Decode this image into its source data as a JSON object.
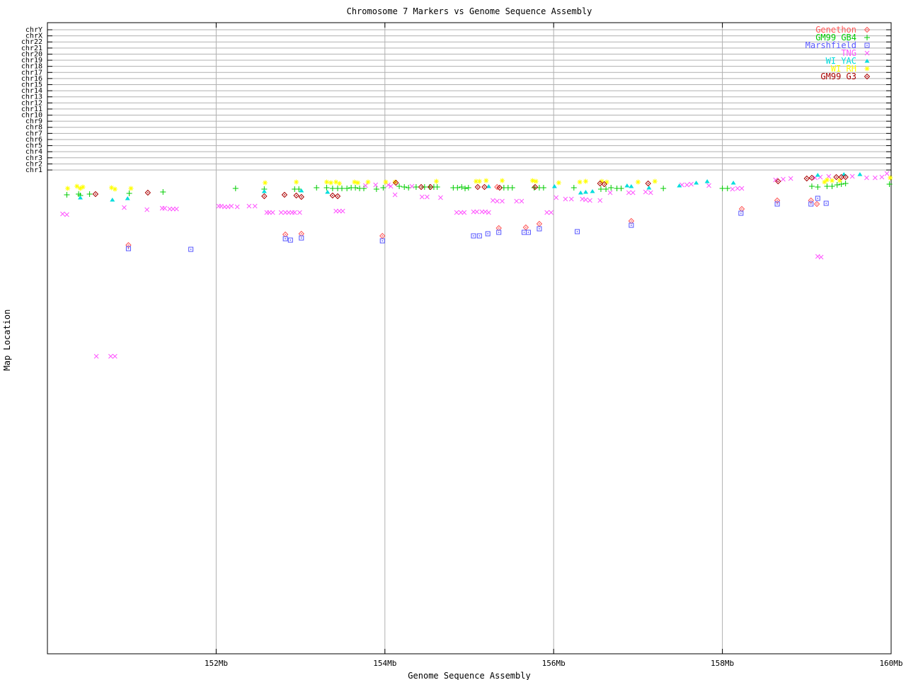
{
  "title": "Chromosome 7 Markers vs Genome Sequence Assembly",
  "x_axis": {
    "label": "Genome Sequence Assembly",
    "ticks": [
      "152Mb",
      "154Mb",
      "156Mb",
      "158Mb",
      "160Mb"
    ],
    "tick_values_mb": [
      152,
      154,
      156,
      158,
      160
    ]
  },
  "y_axis": {
    "label": "Map Location",
    "ticks": [
      "chrY",
      "chrX",
      "chr22",
      "chr21",
      "chr20",
      "chr19",
      "chr18",
      "chr17",
      "chr16",
      "chr15",
      "chr14",
      "chr13",
      "chr12",
      "chr11",
      "chr10",
      "chr9",
      "chr8",
      "chr7",
      "chr6",
      "chr5",
      "chr4",
      "chr3",
      "chr2",
      "chr1"
    ]
  },
  "colors": {
    "axis": "#000000",
    "grid": "#b0b0b0",
    "background": "#ffffff"
  },
  "chart_data": {
    "type": "scatter",
    "title": "Chromosome 7 Markers vs Genome Sequence Assembly",
    "xlabel": "Genome Sequence Assembly",
    "ylabel": "Map Location",
    "axes": {
      "x_min_mb": 150,
      "x_max_mb": 160,
      "x_tick_labels": [
        "152Mb",
        "154Mb",
        "156Mb",
        "158Mb",
        "160Mb"
      ],
      "y_note": "y axis has no numeric scale; chromosome boundary lines chrY..chr1 are evenly spaced at top; point y values below are screenshot pixel rows",
      "grid": true,
      "legend_position": "top-right-inside"
    },
    "series": [
      {
        "name": "Genethon",
        "marker": "open-diamond-dot",
        "color": "#ff5555",
        "points": [
          [
            150.96,
            346
          ],
          [
            152.82,
            331
          ],
          [
            153.01,
            330
          ],
          [
            153.97,
            333
          ],
          [
            155.33,
            264
          ],
          [
            155.35,
            322
          ],
          [
            155.67,
            321
          ],
          [
            155.83,
            316
          ],
          [
            156.92,
            312
          ],
          [
            158.23,
            295
          ],
          [
            158.65,
            283
          ],
          [
            159.05,
            283
          ],
          [
            159.12,
            288
          ]
        ]
      },
      {
        "name": "GM99 GB4",
        "marker": "plus",
        "color": "#00cc00",
        "points": [
          [
            150.23,
            275
          ],
          [
            150.37,
            274
          ],
          [
            150.39,
            276
          ],
          [
            150.5,
            274
          ],
          [
            150.97,
            273
          ],
          [
            151.37,
            271
          ],
          [
            152.23,
            266
          ],
          [
            152.57,
            267
          ],
          [
            152.93,
            267
          ],
          [
            152.98,
            267
          ],
          [
            153.19,
            265
          ],
          [
            153.31,
            265
          ],
          [
            153.38,
            266
          ],
          [
            153.44,
            266
          ],
          [
            153.49,
            266
          ],
          [
            153.55,
            266
          ],
          [
            153.6,
            265
          ],
          [
            153.65,
            265
          ],
          [
            153.7,
            266
          ],
          [
            153.75,
            266
          ],
          [
            153.9,
            267
          ],
          [
            153.98,
            265
          ],
          [
            154.17,
            263
          ],
          [
            154.23,
            264
          ],
          [
            154.28,
            265
          ],
          [
            154.37,
            264
          ],
          [
            154.47,
            264
          ],
          [
            154.53,
            264
          ],
          [
            154.58,
            264
          ],
          [
            154.62,
            264
          ],
          [
            154.81,
            265
          ],
          [
            154.86,
            265
          ],
          [
            154.91,
            264
          ],
          [
            154.95,
            266
          ],
          [
            154.99,
            265
          ],
          [
            155.41,
            265
          ],
          [
            155.46,
            265
          ],
          [
            155.51,
            265
          ],
          [
            155.77,
            265
          ],
          [
            155.83,
            265
          ],
          [
            155.88,
            265
          ],
          [
            156.24,
            265
          ],
          [
            156.56,
            267
          ],
          [
            156.62,
            267
          ],
          [
            156.68,
            265
          ],
          [
            156.75,
            266
          ],
          [
            156.8,
            266
          ],
          [
            157.3,
            266
          ],
          [
            158.0,
            266
          ],
          [
            158.06,
            266
          ],
          [
            159.06,
            263
          ],
          [
            159.13,
            264
          ],
          [
            159.24,
            263
          ],
          [
            159.3,
            263
          ],
          [
            159.36,
            261
          ],
          [
            159.41,
            260
          ],
          [
            159.46,
            259
          ],
          [
            159.98,
            260
          ]
        ]
      },
      {
        "name": "Marshfield",
        "marker": "open-square-dot",
        "color": "#5555ff",
        "points": [
          [
            150.96,
            351
          ],
          [
            151.7,
            352
          ],
          [
            152.82,
            337
          ],
          [
            152.88,
            339
          ],
          [
            153.01,
            336
          ],
          [
            153.97,
            340
          ],
          [
            155.05,
            333
          ],
          [
            155.12,
            333
          ],
          [
            155.22,
            330
          ],
          [
            155.35,
            328
          ],
          [
            155.65,
            328
          ],
          [
            155.7,
            328
          ],
          [
            155.83,
            323
          ],
          [
            156.28,
            327
          ],
          [
            156.92,
            318
          ],
          [
            158.22,
            301
          ],
          [
            158.65,
            288
          ],
          [
            159.05,
            288
          ],
          [
            159.13,
            280
          ],
          [
            159.23,
            287
          ]
        ]
      },
      {
        "name": "TNG",
        "marker": "x-cross",
        "color": "#ff55ff",
        "points": [
          [
            150.18,
            302
          ],
          [
            150.23,
            303
          ],
          [
            150.58,
            503
          ],
          [
            150.75,
            503
          ],
          [
            150.8,
            503
          ],
          [
            150.91,
            293
          ],
          [
            151.18,
            296
          ],
          [
            151.36,
            294
          ],
          [
            151.39,
            294
          ],
          [
            151.45,
            295
          ],
          [
            151.49,
            295
          ],
          [
            151.53,
            295
          ],
          [
            152.03,
            291
          ],
          [
            152.06,
            291
          ],
          [
            152.1,
            292
          ],
          [
            152.14,
            292
          ],
          [
            152.18,
            291
          ],
          [
            152.25,
            292
          ],
          [
            152.39,
            291
          ],
          [
            152.46,
            291
          ],
          [
            152.6,
            300
          ],
          [
            152.63,
            300
          ],
          [
            152.67,
            300
          ],
          [
            152.77,
            300
          ],
          [
            152.82,
            300
          ],
          [
            152.86,
            300
          ],
          [
            152.9,
            300
          ],
          [
            152.93,
            300
          ],
          [
            152.99,
            300
          ],
          [
            153.42,
            298
          ],
          [
            153.46,
            298
          ],
          [
            153.5,
            298
          ],
          [
            153.77,
            262
          ],
          [
            153.89,
            261
          ],
          [
            154.04,
            261
          ],
          [
            154.07,
            263
          ],
          [
            154.12,
            275
          ],
          [
            154.32,
            263
          ],
          [
            154.44,
            278
          ],
          [
            154.5,
            278
          ],
          [
            154.66,
            279
          ],
          [
            154.85,
            300
          ],
          [
            154.9,
            300
          ],
          [
            154.94,
            300
          ],
          [
            155.05,
            299
          ],
          [
            155.09,
            299
          ],
          [
            155.15,
            299
          ],
          [
            155.19,
            299
          ],
          [
            155.23,
            300
          ],
          [
            155.28,
            283
          ],
          [
            155.33,
            284
          ],
          [
            155.39,
            284
          ],
          [
            155.56,
            284
          ],
          [
            155.62,
            284
          ],
          [
            155.92,
            300
          ],
          [
            155.97,
            300
          ],
          [
            156.03,
            279
          ],
          [
            156.14,
            281
          ],
          [
            156.21,
            281
          ],
          [
            156.34,
            281
          ],
          [
            156.38,
            282
          ],
          [
            156.43,
            283
          ],
          [
            156.55,
            283
          ],
          [
            156.67,
            272
          ],
          [
            156.89,
            272
          ],
          [
            156.94,
            272
          ],
          [
            157.09,
            271
          ],
          [
            157.15,
            272
          ],
          [
            157.52,
            261
          ],
          [
            157.58,
            261
          ],
          [
            157.63,
            260
          ],
          [
            157.84,
            262
          ],
          [
            158.12,
            267
          ],
          [
            158.18,
            266
          ],
          [
            158.23,
            266
          ],
          [
            158.63,
            254
          ],
          [
            158.72,
            253
          ],
          [
            158.81,
            252
          ],
          [
            159.1,
            251
          ],
          [
            159.16,
            250
          ],
          [
            159.26,
            249
          ],
          [
            159.54,
            249
          ],
          [
            159.71,
            251
          ],
          [
            159.81,
            251
          ],
          [
            159.89,
            250
          ],
          [
            159.95,
            245
          ],
          [
            159.13,
            362
          ],
          [
            159.17,
            363
          ]
        ]
      },
      {
        "name": "WI YAC",
        "marker": "triangle-filled",
        "color": "#00dddd",
        "points": [
          [
            150.39,
            279
          ],
          [
            150.77,
            282
          ],
          [
            150.95,
            280
          ],
          [
            152.57,
            270
          ],
          [
            153.01,
            269
          ],
          [
            153.32,
            271
          ],
          [
            155.23,
            263
          ],
          [
            156.01,
            263
          ],
          [
            156.32,
            272
          ],
          [
            156.38,
            271
          ],
          [
            156.46,
            270
          ],
          [
            156.87,
            262
          ],
          [
            156.92,
            263
          ],
          [
            157.13,
            265
          ],
          [
            157.49,
            262
          ],
          [
            157.69,
            258
          ],
          [
            157.82,
            256
          ],
          [
            158.13,
            258
          ],
          [
            159.13,
            247
          ],
          [
            159.44,
            246
          ],
          [
            159.63,
            246
          ]
        ]
      },
      {
        "name": "WI RH",
        "marker": "asterisk",
        "color": "#ffff00",
        "points": [
          [
            150.24,
            266
          ],
          [
            150.35,
            263
          ],
          [
            150.39,
            266
          ],
          [
            150.42,
            264
          ],
          [
            150.76,
            265
          ],
          [
            150.8,
            267
          ],
          [
            150.99,
            266
          ],
          [
            152.58,
            258
          ],
          [
            152.95,
            257
          ],
          [
            153.31,
            257
          ],
          [
            153.36,
            258
          ],
          [
            153.42,
            257
          ],
          [
            153.46,
            259
          ],
          [
            153.64,
            257
          ],
          [
            153.68,
            258
          ],
          [
            153.8,
            257
          ],
          [
            154.01,
            257
          ],
          [
            154.12,
            257
          ],
          [
            154.61,
            256
          ],
          [
            155.08,
            256
          ],
          [
            155.12,
            256
          ],
          [
            155.2,
            255
          ],
          [
            155.39,
            255
          ],
          [
            155.75,
            255
          ],
          [
            155.79,
            256
          ],
          [
            156.06,
            258
          ],
          [
            156.31,
            257
          ],
          [
            156.38,
            256
          ],
          [
            156.57,
            256
          ],
          [
            156.63,
            257
          ],
          [
            157.0,
            257
          ],
          [
            157.2,
            256
          ],
          [
            159.21,
            257
          ],
          [
            159.24,
            254
          ],
          [
            159.3,
            255
          ],
          [
            159.39,
            255
          ],
          [
            159.99,
            251
          ]
        ]
      },
      {
        "name": "GM99 G3",
        "marker": "open-diamond-dot",
        "color": "#aa0000",
        "points": [
          [
            150.57,
            274
          ],
          [
            151.19,
            272
          ],
          [
            152.57,
            277
          ],
          [
            152.81,
            275
          ],
          [
            152.95,
            276
          ],
          [
            153.01,
            278
          ],
          [
            153.38,
            276
          ],
          [
            153.44,
            277
          ],
          [
            154.13,
            258
          ],
          [
            154.43,
            264
          ],
          [
            154.54,
            264
          ],
          [
            155.1,
            264
          ],
          [
            155.18,
            264
          ],
          [
            155.36,
            265
          ],
          [
            155.78,
            264
          ],
          [
            156.55,
            259
          ],
          [
            156.6,
            260
          ],
          [
            157.12,
            259
          ],
          [
            158.66,
            256
          ],
          [
            159.0,
            252
          ],
          [
            159.06,
            251
          ],
          [
            159.35,
            250
          ],
          [
            159.41,
            250
          ],
          [
            159.46,
            250
          ]
        ]
      }
    ]
  }
}
